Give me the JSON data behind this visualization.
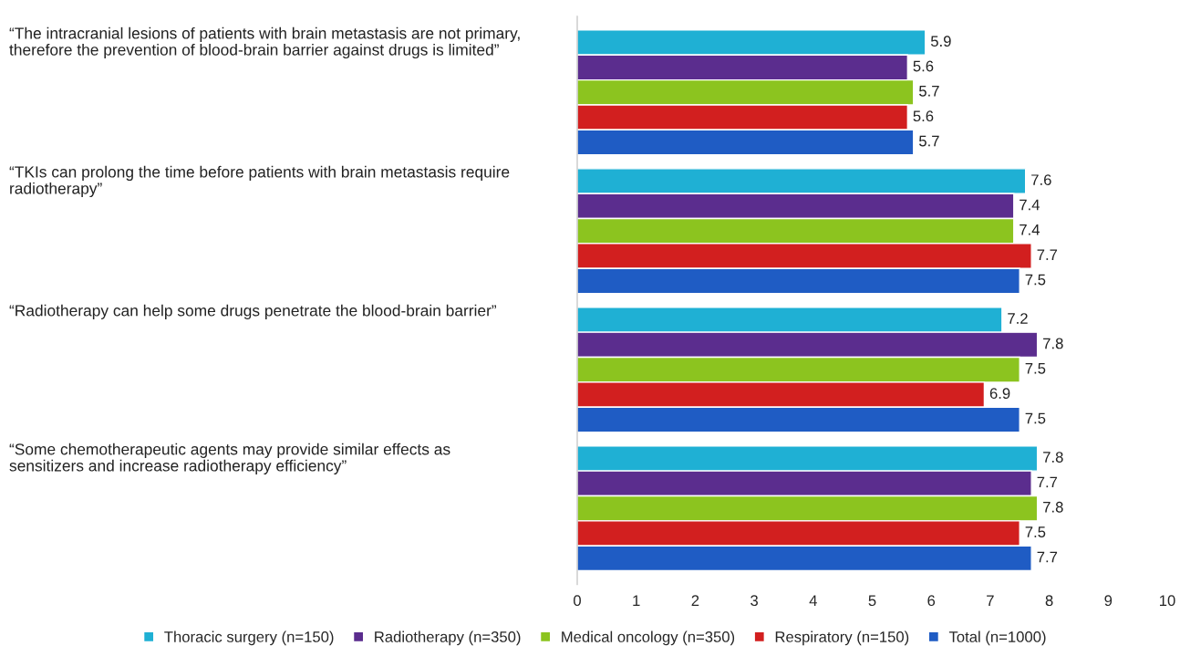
{
  "chart_data": {
    "type": "bar",
    "orientation": "horizontal",
    "categories": [
      "“The intracranial lesions of patients with brain metastasis are not primary,\ntherefore the prevention of blood-brain barrier against drugs is limited”",
      "“TKIs can prolong the time before patients with brain metastasis require\nradiotherapy”",
      "“Radiotherapy can help some drugs penetrate the blood-brain barrier”",
      "“Some chemotherapeutic agents may provide similar effects as\nsensitizers and increase radiotherapy efficiency”"
    ],
    "series": [
      {
        "name": "Thoracic surgery (n=150)",
        "color": "#1fb0d4",
        "values": [
          5.9,
          7.6,
          7.2,
          7.8
        ]
      },
      {
        "name": "Radiotherapy (n=350)",
        "color": "#5b2d8e",
        "values": [
          5.6,
          7.4,
          7.8,
          7.7
        ]
      },
      {
        "name": "Medical oncology (n=350)",
        "color": "#8cc41f",
        "values": [
          5.7,
          7.4,
          7.5,
          7.8
        ]
      },
      {
        "name": "Respiratory (n=150)",
        "color": "#d21f1f",
        "values": [
          5.6,
          7.7,
          6.9,
          7.5
        ]
      },
      {
        "name": "Total (n=1000)",
        "color": "#1f5cc4",
        "values": [
          5.7,
          7.5,
          7.5,
          7.7
        ]
      }
    ],
    "xlim": [
      0,
      10
    ],
    "xticks": [
      0,
      1,
      2,
      3,
      4,
      5,
      6,
      7,
      8,
      9,
      10
    ],
    "data_labels": true,
    "legend": "bottom",
    "grid": false
  }
}
